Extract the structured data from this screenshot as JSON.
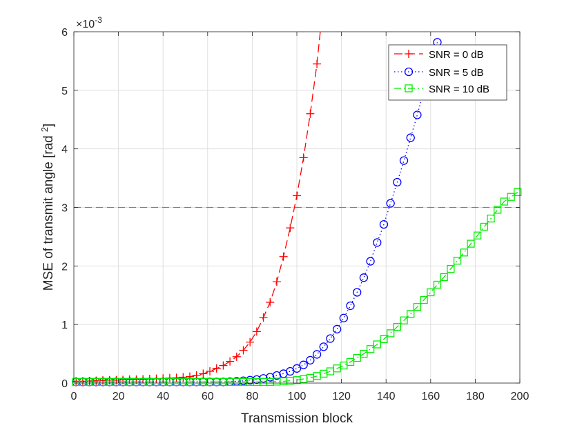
{
  "chart_data": {
    "type": "line",
    "title": "",
    "xlabel": "Transmission block",
    "ylabel": "MSE of transmit angle [rad",
    "ylabel_sup": "2",
    "ylabel_close": "]",
    "y_multiplier": "×10",
    "y_multiplier_exp": "-3",
    "xlim": [
      0,
      200
    ],
    "ylim": [
      0,
      6
    ],
    "xticks": [
      0,
      20,
      40,
      60,
      80,
      100,
      120,
      140,
      160,
      180,
      200
    ],
    "yticks": [
      0,
      1,
      2,
      3,
      4,
      5,
      6
    ],
    "grid": true,
    "legend_position": "top-right",
    "threshold": {
      "y": 3,
      "color": "#3b8fd0",
      "style": "dashed"
    },
    "series": [
      {
        "name": "SNR = 0 dB",
        "color": "#ff0000",
        "line": "dashed",
        "marker": "plus",
        "x": [
          1,
          4,
          7,
          10,
          13,
          16,
          19,
          22,
          25,
          28,
          31,
          34,
          37,
          40,
          43,
          46,
          49,
          52,
          55,
          58,
          61,
          64,
          67,
          70,
          73,
          76,
          79,
          82,
          85,
          88,
          91,
          94,
          97,
          100,
          103,
          106,
          109
        ],
        "y": [
          0.03,
          0.03,
          0.035,
          0.04,
          0.045,
          0.05,
          0.05,
          0.055,
          0.06,
          0.06,
          0.065,
          0.07,
          0.075,
          0.08,
          0.085,
          0.09,
          0.1,
          0.11,
          0.13,
          0.16,
          0.2,
          0.25,
          0.3,
          0.37,
          0.45,
          0.56,
          0.7,
          0.88,
          1.12,
          1.38,
          1.73,
          2.16,
          2.65,
          3.2,
          3.85,
          4.6,
          5.45
        ]
      },
      {
        "name": "SNR = 5 dB",
        "color": "#0000ff",
        "line": "dotted",
        "marker": "circle",
        "x": [
          1,
          4,
          7,
          10,
          13,
          16,
          19,
          22,
          25,
          28,
          31,
          34,
          37,
          40,
          43,
          46,
          49,
          52,
          55,
          58,
          61,
          64,
          67,
          70,
          73,
          76,
          79,
          82,
          85,
          88,
          91,
          94,
          97,
          100,
          103,
          106,
          109,
          112,
          115,
          118,
          121,
          124,
          127,
          130,
          133,
          136,
          139,
          142,
          145,
          148,
          151,
          154,
          157,
          160,
          163
        ],
        "y": [
          0.02,
          0.02,
          0.02,
          0.02,
          0.02,
          0.02,
          0.02,
          0.02,
          0.02,
          0.02,
          0.02,
          0.02,
          0.02,
          0.02,
          0.02,
          0.02,
          0.02,
          0.02,
          0.02,
          0.02,
          0.02,
          0.02,
          0.02,
          0.025,
          0.03,
          0.04,
          0.05,
          0.06,
          0.08,
          0.1,
          0.13,
          0.16,
          0.2,
          0.25,
          0.31,
          0.39,
          0.49,
          0.62,
          0.76,
          0.92,
          1.11,
          1.32,
          1.55,
          1.8,
          2.08,
          2.4,
          2.71,
          3.07,
          3.43,
          3.8,
          4.19,
          4.58,
          5.0,
          5.4,
          5.82
        ]
      },
      {
        "name": "SNR = 10 dB",
        "color": "#00ee00",
        "line": "dashdot",
        "marker": "square",
        "x": [
          1,
          4,
          7,
          10,
          13,
          16,
          19,
          22,
          25,
          28,
          31,
          34,
          37,
          40,
          43,
          46,
          49,
          52,
          55,
          58,
          61,
          64,
          67,
          70,
          73,
          76,
          79,
          82,
          85,
          88,
          91,
          94,
          97,
          100,
          103,
          106,
          109,
          112,
          115,
          118,
          121,
          124,
          127,
          130,
          133,
          136,
          139,
          142,
          145,
          148,
          151,
          154,
          157,
          160,
          163,
          166,
          169,
          172,
          175,
          178,
          181,
          184,
          187,
          190,
          193,
          196,
          199
        ],
        "y": [
          0.02,
          0.02,
          0.02,
          0.02,
          0.02,
          0.02,
          0.02,
          0.02,
          0.02,
          0.02,
          0.02,
          0.02,
          0.02,
          0.02,
          0.02,
          0.02,
          0.02,
          0.02,
          0.02,
          0.02,
          0.02,
          0.02,
          0.02,
          0.02,
          0.02,
          0.02,
          0.02,
          0.02,
          0.02,
          0.02,
          0.025,
          0.03,
          0.04,
          0.05,
          0.07,
          0.09,
          0.12,
          0.16,
          0.2,
          0.25,
          0.3,
          0.36,
          0.43,
          0.5,
          0.58,
          0.66,
          0.75,
          0.85,
          0.96,
          1.07,
          1.18,
          1.3,
          1.42,
          1.55,
          1.68,
          1.81,
          1.95,
          2.09,
          2.23,
          2.38,
          2.52,
          2.67,
          2.81,
          2.96,
          3.1,
          3.18,
          3.26
        ]
      }
    ]
  }
}
